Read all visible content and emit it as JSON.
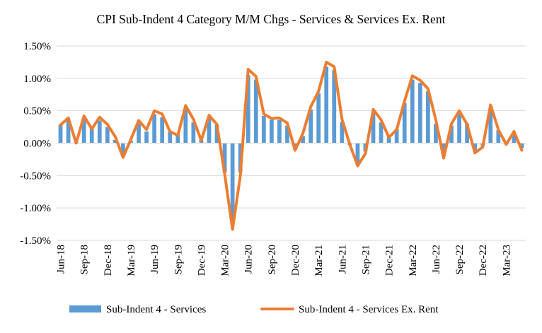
{
  "chart_data": {
    "type": "bar+line",
    "title": "CPI Sub-Indent 4 Category M/M Chgs - Services & Services Ex. Rent",
    "xlabel": "",
    "ylabel": "",
    "ylim": [
      -1.5,
      1.5
    ],
    "yticks": [
      "1.50%",
      "1.00%",
      "0.50%",
      "0.00%",
      "-0.50%",
      "-1.00%",
      "-1.50%"
    ],
    "ytick_values": [
      1.5,
      1.0,
      0.5,
      0.0,
      -0.5,
      -1.0,
      -1.5
    ],
    "grid": true,
    "legend_position": "bottom",
    "categories": [
      "Jun-18",
      "Jul-18",
      "Aug-18",
      "Sep-18",
      "Oct-18",
      "Nov-18",
      "Dec-18",
      "Jan-19",
      "Feb-19",
      "Mar-19",
      "Apr-19",
      "May-19",
      "Jun-19",
      "Jul-19",
      "Aug-19",
      "Sep-19",
      "Oct-19",
      "Nov-19",
      "Dec-19",
      "Jan-20",
      "Feb-20",
      "Mar-20",
      "Apr-20",
      "May-20",
      "Jun-20",
      "Jul-20",
      "Aug-20",
      "Sep-20",
      "Oct-20",
      "Nov-20",
      "Dec-20",
      "Jan-21",
      "Feb-21",
      "Mar-21",
      "Apr-21",
      "May-21",
      "Jun-21",
      "Jul-21",
      "Aug-21",
      "Sep-21",
      "Oct-21",
      "Nov-21",
      "Dec-21",
      "Jan-22",
      "Feb-22",
      "Mar-22",
      "Apr-22",
      "May-22",
      "Jun-22",
      "Jul-22",
      "Aug-22",
      "Sep-22",
      "Oct-22",
      "Nov-22",
      "Dec-22",
      "Jan-23",
      "Feb-23",
      "Mar-23",
      "Apr-23",
      "May-23"
    ],
    "tick_labels": [
      "Jun-18",
      "Sep-18",
      "Dec-18",
      "Mar-19",
      "Jun-19",
      "Sep-19",
      "Dec-19",
      "Mar-20",
      "Jun-20",
      "Sep-20",
      "Dec-20",
      "Mar-21",
      "Jun-21",
      "Sep-21",
      "Dec-21",
      "Mar-22",
      "Jun-22",
      "Sep-22",
      "Dec-22",
      "Mar-23"
    ],
    "series": [
      {
        "name": "Sub-Indent 4 - Services",
        "kind": "bar",
        "color": "#5B9BD5",
        "values": [
          0.29,
          0.35,
          0.02,
          0.38,
          0.22,
          0.35,
          0.25,
          0.05,
          -0.18,
          0.04,
          0.3,
          0.18,
          0.45,
          0.4,
          0.17,
          0.13,
          0.52,
          0.32,
          0.05,
          0.4,
          0.28,
          -0.45,
          -1.25,
          -0.45,
          1.05,
          0.98,
          0.42,
          0.36,
          0.36,
          0.27,
          -0.1,
          0.11,
          0.52,
          0.77,
          1.18,
          1.13,
          0.33,
          -0.03,
          -0.32,
          -0.13,
          0.47,
          0.32,
          0.1,
          0.22,
          0.62,
          0.98,
          0.93,
          0.8,
          0.3,
          -0.2,
          0.27,
          0.45,
          0.3,
          -0.13,
          -0.04,
          0.52,
          0.2,
          0.0,
          0.16,
          -0.08
        ]
      },
      {
        "name": "Sub-Indent 4 - Services Ex. Rent",
        "kind": "line",
        "color": "#ED7D31",
        "values": [
          0.28,
          0.39,
          0.0,
          0.42,
          0.22,
          0.4,
          0.29,
          0.1,
          -0.22,
          0.06,
          0.35,
          0.21,
          0.5,
          0.45,
          0.18,
          0.12,
          0.58,
          0.37,
          0.04,
          0.43,
          0.29,
          -0.48,
          -1.33,
          -0.5,
          1.14,
          1.03,
          0.45,
          0.38,
          0.39,
          0.31,
          -0.11,
          0.15,
          0.56,
          0.8,
          1.25,
          1.18,
          0.37,
          -0.02,
          -0.35,
          -0.16,
          0.52,
          0.36,
          0.09,
          0.21,
          0.65,
          1.04,
          0.97,
          0.84,
          0.36,
          -0.23,
          0.3,
          0.5,
          0.29,
          -0.15,
          -0.06,
          0.59,
          0.21,
          -0.02,
          0.18,
          -0.11
        ]
      }
    ]
  }
}
